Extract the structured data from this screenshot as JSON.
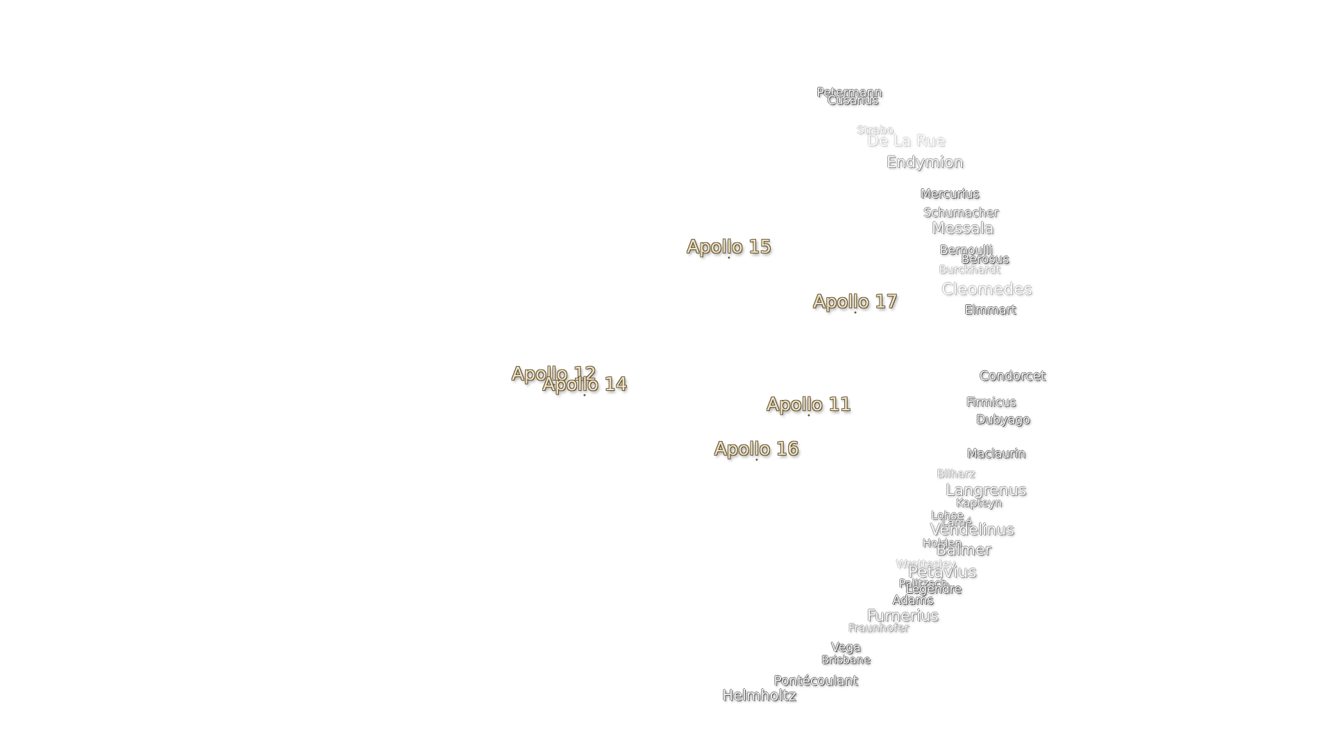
{
  "apollo_sites": [
    "Apollo 15",
    "Apollo 17",
    "Apollo 12",
    "Apollo 14",
    "Apollo 11",
    "Apollo 16"
  ],
  "features": [
    "Petermann",
    "Cusanus",
    "Strabo",
    "De La Rue",
    "Endymion",
    "Mercurius",
    "Schumacher",
    "Messala",
    "Bernoulli",
    "Berosus",
    "Burckhardt",
    "Cleomedes",
    "Elmmart",
    "Condorcet",
    "Firmicus",
    "Dubyago",
    "Maclaurin",
    "Bilharz",
    "Langrenus",
    "Kapteyn",
    "Lohse",
    "Lamé",
    "Vendelinus",
    "Holden",
    "Balmer",
    "Wrottesley",
    "Petavius",
    "Palitzsch",
    "Legendre",
    "Adams",
    "Furnerius",
    "Fraunhofer",
    "Vega",
    "Brisbane",
    "Pontécoulant",
    "Helmholtz"
  ]
}
